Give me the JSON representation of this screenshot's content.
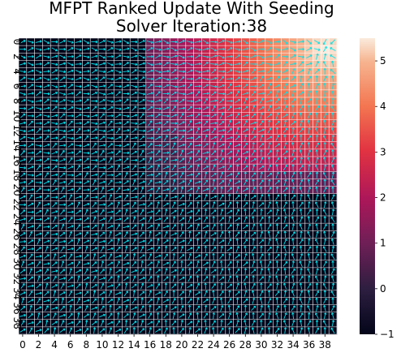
{
  "chart_data": {
    "type": "heatmap",
    "title": "MFPT Ranked Update With Seeding",
    "subtitle": "Solver Iteration:38",
    "rows": 40,
    "cols": 40,
    "x_tick_labels": [
      "0",
      "2",
      "4",
      "6",
      "8",
      "10",
      "12",
      "14",
      "16",
      "18",
      "20",
      "22",
      "24",
      "26",
      "28",
      "30",
      "32",
      "34",
      "36",
      "38"
    ],
    "y_tick_labels": [
      "0",
      "2",
      "4",
      "6",
      "8",
      "10",
      "12",
      "14",
      "16",
      "18",
      "20",
      "22",
      "24",
      "26",
      "28",
      "30",
      "32",
      "34",
      "36",
      "38"
    ],
    "colorbar": {
      "min": -1,
      "max": 5.5,
      "ticks": [
        -1,
        0,
        1,
        2,
        3,
        4,
        5
      ],
      "colormap": "rocket"
    },
    "regions": [
      {
        "name": "upper-right basin",
        "rows": [
          0,
          20
        ],
        "cols": [
          16,
          39
        ],
        "value_range": [
          0,
          5.6
        ],
        "peak_cell": [
          1,
          38
        ]
      },
      {
        "name": "lower-left",
        "rows": [
          0,
          39
        ],
        "cols": [
          0,
          15
        ],
        "value": -1
      },
      {
        "name": "lower-right",
        "rows": [
          21,
          39
        ],
        "cols": [
          20,
          39
        ],
        "value": -1
      }
    ],
    "overlay": {
      "type": "policy-arrows",
      "color": "#00e5ee"
    }
  },
  "colors": {
    "gridline": "#ffffff",
    "arrow": "#00e5ee",
    "background": "#ffffff"
  }
}
